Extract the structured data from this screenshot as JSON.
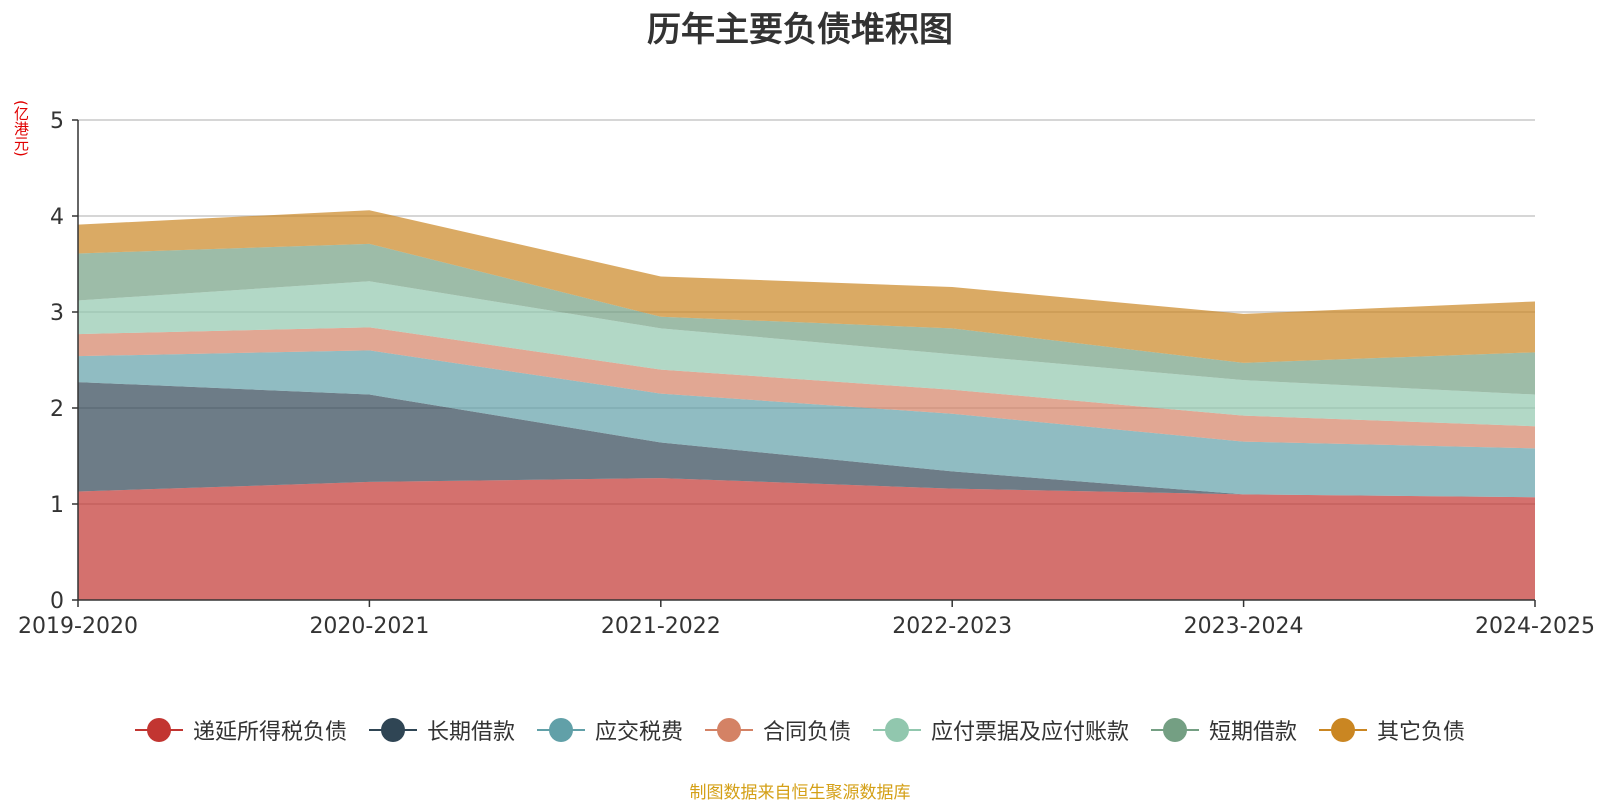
{
  "chart_data": {
    "type": "area",
    "stacked": true,
    "title": "历年主要负债堆积图",
    "ylabel": "(亿港元)",
    "xlabel": "",
    "categories": [
      "2019-2020",
      "2020-2021",
      "2021-2022",
      "2022-2023",
      "2023-2024",
      "2024-2025"
    ],
    "ylim": [
      0,
      5
    ],
    "yticks": [
      0,
      1,
      2,
      3,
      4,
      5
    ],
    "grid": true,
    "legend_position": "bottom",
    "series": [
      {
        "name": "递延所得税负债",
        "color": "#c23531",
        "values": [
          1.13,
          1.23,
          1.27,
          1.16,
          1.1,
          1.07
        ]
      },
      {
        "name": "长期借款",
        "color": "#2f4554",
        "values": [
          1.14,
          0.91,
          0.37,
          0.18,
          0.0,
          0.0
        ]
      },
      {
        "name": "应交税费",
        "color": "#61a0a8",
        "values": [
          0.27,
          0.46,
          0.51,
          0.6,
          0.55,
          0.51
        ]
      },
      {
        "name": "合同负债",
        "color": "#d48265",
        "values": [
          0.23,
          0.24,
          0.25,
          0.25,
          0.27,
          0.23
        ]
      },
      {
        "name": "应付票据及应付账款",
        "color": "#91c7ae",
        "values": [
          0.35,
          0.48,
          0.43,
          0.37,
          0.37,
          0.33
        ]
      },
      {
        "name": "短期借款",
        "color": "#749f83",
        "values": [
          0.49,
          0.39,
          0.12,
          0.27,
          0.18,
          0.44
        ]
      },
      {
        "name": "其它负债",
        "color": "#ca8622",
        "values": [
          0.3,
          0.35,
          0.42,
          0.43,
          0.51,
          0.53
        ]
      }
    ]
  },
  "footer": {
    "source": "制图数据来自恒生聚源数据库"
  }
}
